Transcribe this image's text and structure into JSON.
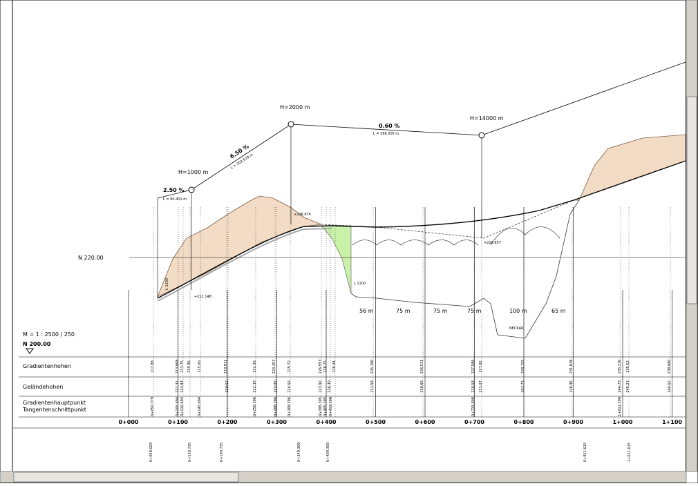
{
  "profile": {
    "curves": [
      "H=1000 m",
      "H=2000 m",
      "H=14000 m"
    ],
    "grades": [
      {
        "percent": "2.50 %",
        "length": "L = 90.401 m"
      },
      {
        "percent": "6.50 %",
        "length": "L = 203.629 m"
      },
      {
        "percent": "0.60 %",
        "length": "L = 386.505 m"
      }
    ],
    "datum_upper": "N 220.00",
    "scale": "M = 1 : 2500 / 250",
    "datum_lower": "N 200.00",
    "annotations": [
      "L 1100",
      "L 1100",
      "+226.874",
      "+211.148",
      "+226.857"
    ],
    "spans": [
      "56 m",
      "75 m",
      "75 m",
      "75 m",
      "100 m",
      "65 m"
    ],
    "river": "NECKAR"
  },
  "table": {
    "row_labels": [
      "Gradientenhohen",
      "Geländehohen",
      "Gradientenhauptpunkt",
      "Tangentenschnittpunkt"
    ],
    "gradient_heights": [
      "211.88",
      "213.808",
      "213.75",
      "215.96",
      "215.00",
      "218.911",
      "222.36",
      "224.457",
      "225.72",
      "226.553",
      "226.75",
      "226.44",
      "226.180",
      "226.511",
      "227.586",
      "227.82",
      "228.155",
      "231.838",
      "235.236",
      "235.52",
      "238.680"
    ],
    "ground_heights": [
      "221.31",
      "223.83",
      "220.62",
      "222.30",
      "223.05",
      "224.56",
      "223.92",
      "226.30",
      "211.58",
      "210.66",
      "210.58",
      "211.07",
      "203.73",
      "220.95",
      "244.73",
      "245.23",
      "244.62"
    ],
    "main_points": [
      "0+050.379",
      "0+105.694",
      "0+110.694",
      "0+145.694",
      "0+258.306",
      "0+288.306",
      "0+308.306",
      "0+395.305",
      "0+405.305",
      "0+419.308",
      "0+715.808",
      "1+012.308"
    ]
  },
  "stations": [
    "0+000",
    "0+100",
    "0+200",
    "0+300",
    "0+400",
    "0+500",
    "0+600",
    "0+700",
    "0+800",
    "0+900",
    "1+000",
    "1+100"
  ],
  "key_stations": [
    "0+048.029",
    "0+130.735",
    "0+190.735",
    "0+349.309",
    "0+409.309",
    "0+921.615",
    "1+011.615"
  ]
}
